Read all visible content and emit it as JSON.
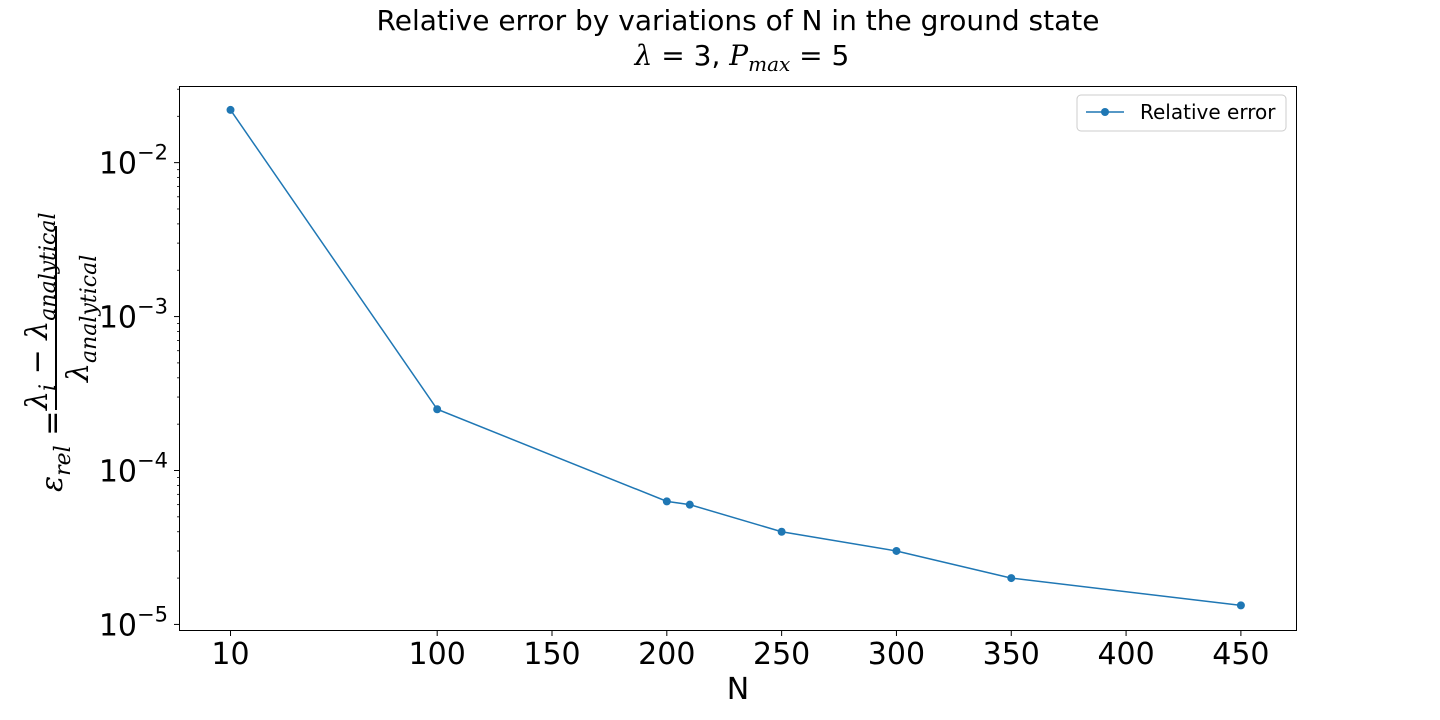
{
  "chart_data": {
    "type": "line",
    "title": "Relative error by variations of N in the ground state",
    "subtitle": {
      "lambda_sym": "λ",
      "lambda_eq": " = 3, ",
      "p_sym": "P",
      "p_sub": "max",
      "p_eq": " = 5"
    },
    "xlabel": "N",
    "ylabel": {
      "eps_sym": "ε",
      "eps_sub": "rel",
      "eq": " = ",
      "num_lambda": "λ",
      "num_sub_i": "i",
      "minus": " − ",
      "den_lambda": "λ",
      "sub_analytical": "analytical"
    },
    "x_ticks": [
      10,
      100,
      150,
      200,
      250,
      300,
      350,
      400,
      450
    ],
    "x_tick_labels": [
      "10",
      "100",
      "150",
      "200",
      "250",
      "300",
      "350",
      "400",
      "450"
    ],
    "y_scale": "log",
    "y_ticks": [
      {
        "value": 0.01,
        "base": "10",
        "exp": "−2"
      },
      {
        "value": 0.001,
        "base": "10",
        "exp": "−3"
      },
      {
        "value": 0.0001,
        "base": "10",
        "exp": "−4"
      },
      {
        "value": 1e-05,
        "base": "10",
        "exp": "−5"
      }
    ],
    "xlim": [
      -12,
      474
    ],
    "ylim": [
      9.2e-06,
      0.031
    ],
    "grid": false,
    "legend_position": "top-right",
    "series": [
      {
        "name": "Relative error",
        "color": "#1f77b4",
        "marker": "circle",
        "x": [
          10,
          100,
          200,
          210,
          250,
          300,
          350,
          450
        ],
        "y": [
          0.022,
          0.00025,
          6.3e-05,
          6e-05,
          4e-05,
          3e-05,
          2e-05,
          1.33e-05
        ]
      }
    ]
  }
}
